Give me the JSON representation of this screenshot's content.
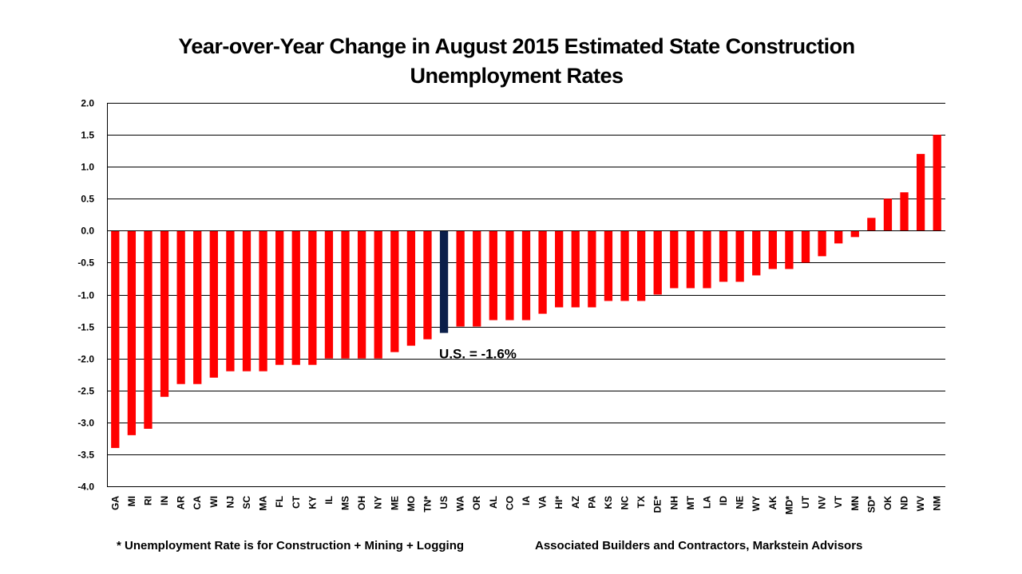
{
  "chart_data": {
    "type": "bar",
    "title": "Year-over-Year Change in August 2015 Estimated State Construction Unemployment Rates",
    "title_lines": [
      "Year-over-Year Change in August 2015 Estimated State Construction",
      "Unemployment Rates"
    ],
    "xlabel": "",
    "ylabel": "",
    "ylim": [
      -4.0,
      2.0
    ],
    "yticks": [
      "2.0",
      "1.5",
      "1.0",
      "0.5",
      "0.0",
      "-0.5",
      "-1.0",
      "-1.5",
      "-2.0",
      "-2.5",
      "-3.0",
      "-3.5",
      "-4.0"
    ],
    "grid": true,
    "categories": [
      "GA",
      "MI",
      "RI",
      "IN",
      "AR",
      "CA",
      "WI",
      "NJ",
      "SC",
      "MA",
      "FL",
      "CT",
      "KY",
      "IL",
      "MS",
      "OH",
      "NY",
      "ME",
      "MO",
      "TN*",
      "US",
      "WA",
      "OR",
      "AL",
      "CO",
      "IA",
      "VA",
      "HI*",
      "AZ",
      "PA",
      "KS",
      "NC",
      "TX",
      "DE*",
      "NH",
      "MT",
      "LA",
      "ID",
      "NE",
      "WY",
      "AK",
      "MD*",
      "UT",
      "NV",
      "VT",
      "MN",
      "SD*",
      "OK",
      "ND",
      "WV",
      "NM"
    ],
    "values": [
      -3.4,
      -3.2,
      -3.1,
      -2.6,
      -2.4,
      -2.4,
      -2.3,
      -2.2,
      -2.2,
      -2.2,
      -2.1,
      -2.1,
      -2.1,
      -2.0,
      -2.0,
      -2.0,
      -2.0,
      -1.9,
      -1.8,
      -1.7,
      -1.6,
      -1.5,
      -1.5,
      -1.4,
      -1.4,
      -1.4,
      -1.3,
      -1.2,
      -1.2,
      -1.2,
      -1.1,
      -1.1,
      -1.1,
      -1.0,
      -0.9,
      -0.9,
      -0.9,
      -0.8,
      -0.8,
      -0.7,
      -0.6,
      -0.6,
      -0.5,
      -0.4,
      -0.2,
      -0.1,
      0.2,
      0.5,
      0.6,
      1.2,
      1.5
    ],
    "highlight_category": "US",
    "annotation": "U.S. = -1.6%"
  },
  "colors": {
    "bar": "#ff0000",
    "highlight": "#0b1f4a",
    "grid": "#000000"
  },
  "footnotes": {
    "left": "* Unemployment Rate is for Construction + Mining + Logging",
    "right": "Associated Builders and Contractors, Markstein Advisors"
  }
}
